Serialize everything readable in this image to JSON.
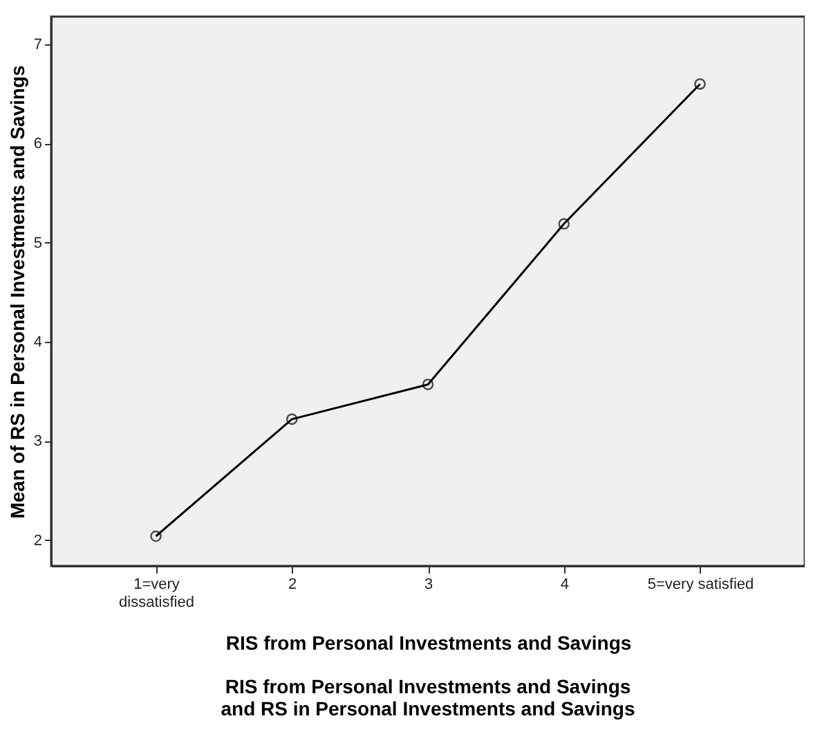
{
  "chart_data": {
    "type": "line",
    "title": "RIS from Personal Investments and Savings\nand RS in Personal Investments and Savings",
    "xlabel": "RIS from Personal Investments and Savings",
    "ylabel": "Mean of RS in Personal Investments and Savings",
    "categories": [
      "1=very\ndissatisfied",
      "2",
      "3",
      "4",
      "5=very satisfied"
    ],
    "series": [
      {
        "color": "#000000",
        "values": [
          2.04,
          3.22,
          3.57,
          5.19,
          6.6
        ]
      }
    ],
    "ylim": [
      1.74,
      7.28
    ],
    "yticks": [
      2,
      3,
      4,
      5,
      6,
      7
    ],
    "grid": false,
    "marker": "circle",
    "line_style": "solid"
  }
}
